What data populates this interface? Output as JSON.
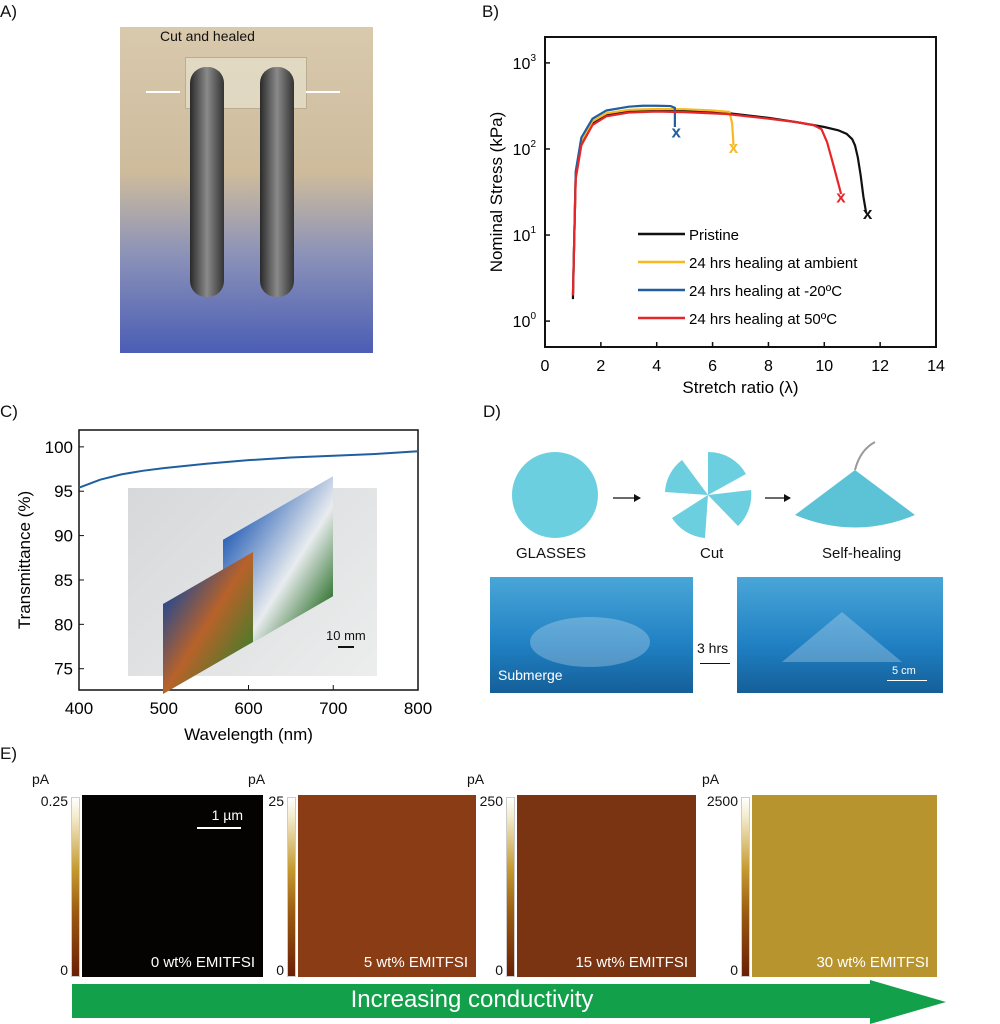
{
  "panels": {
    "a": "A)",
    "b": "B)",
    "c": "C)",
    "d": "D)",
    "e": "E)"
  },
  "panel_a": {
    "annotation": "Cut and healed"
  },
  "panel_d": {
    "step1": "GLASSES",
    "step2": "Cut",
    "step3": "Self-healing",
    "photo1_label": "Submerge",
    "time_label": "3 hrs",
    "scale_label": "5 cm"
  },
  "panel_c_inset": {
    "scale_label": "10 mm"
  },
  "panel_e": {
    "unit": "pA",
    "scale_label": "1 µm",
    "images": [
      {
        "label": "0 wt% EMITFSI",
        "cbar_max": "0.25",
        "cbar_min": "0",
        "color": "#050202"
      },
      {
        "label": "5 wt% EMITFSI",
        "cbar_max": "25",
        "cbar_min": "0",
        "color": "#8a3d14"
      },
      {
        "label": "15 wt% EMITFSI",
        "cbar_max": "250",
        "cbar_min": "0",
        "color": "#7a3412"
      },
      {
        "label": "30 wt% EMITFSI",
        "cbar_max": "2500",
        "cbar_min": "0",
        "color": "#b8942e"
      }
    ],
    "arrow_label": "Increasing conductivity",
    "arrow_color": "#12a14a"
  },
  "chart_data": [
    {
      "type": "line",
      "panel": "B",
      "xlabel": "Stretch ratio (λ)",
      "ylabel": "Nominal Stress (kPa)",
      "xscale": "linear",
      "yscale": "log",
      "xlim": [
        0,
        14
      ],
      "ylim": [
        0.5,
        2000
      ],
      "xticks": [
        "0",
        "2",
        "4",
        "6",
        "8",
        "10",
        "12",
        "14"
      ],
      "yticks": [
        {
          "base": "10",
          "exp": "0"
        },
        {
          "base": "10",
          "exp": "1"
        },
        {
          "base": "10",
          "exp": "2"
        },
        {
          "base": "10",
          "exp": "3"
        }
      ],
      "legend_position": "bottom-center",
      "series": [
        {
          "name": "Pristine",
          "color": "#111111",
          "x": [
            1,
            1.05,
            1.1,
            1.3,
            1.7,
            2.2,
            3,
            4,
            5,
            6.5,
            8,
            9,
            10,
            10.5,
            10.8,
            11,
            11.1,
            11.2,
            11.3,
            11.4,
            11.5
          ],
          "y": [
            1.8,
            10,
            50,
            120,
            200,
            250,
            275,
            280,
            275,
            262,
            230,
            205,
            180,
            165,
            150,
            130,
            110,
            80,
            50,
            28,
            18
          ],
          "break": [
            11.55,
            18
          ]
        },
        {
          "name": "24 hrs healing at ambient",
          "color": "#f8b820",
          "x": [
            1,
            1.05,
            1.1,
            1.3,
            1.7,
            2.2,
            3,
            4,
            5,
            6,
            6.6,
            6.7,
            6.75
          ],
          "y": [
            2,
            10,
            50,
            125,
            210,
            260,
            285,
            292,
            290,
            280,
            270,
            200,
            110
          ],
          "break": [
            6.75,
            105
          ]
        },
        {
          "name": "24 hrs healing at -20ºC",
          "color": "#1f5fa0",
          "x": [
            1,
            1.05,
            1.1,
            1.3,
            1.7,
            2.2,
            3,
            3.5,
            4,
            4.5,
            4.65,
            4.65
          ],
          "y": [
            2,
            10,
            55,
            135,
            225,
            280,
            310,
            318,
            318,
            315,
            300,
            180
          ],
          "break": [
            4.7,
            160
          ]
        },
        {
          "name": "24 hrs healing at 50ºC",
          "color": "#e8262a",
          "x": [
            1,
            1.05,
            1.1,
            1.3,
            1.7,
            2.2,
            3,
            4,
            5,
            6.5,
            8,
            9,
            9.6,
            9.9,
            10.1,
            10.3,
            10.5,
            10.6
          ],
          "y": [
            2,
            10,
            45,
            110,
            190,
            240,
            265,
            272,
            268,
            255,
            225,
            205,
            190,
            170,
            120,
            70,
            40,
            30
          ],
          "break": [
            10.6,
            28
          ]
        }
      ]
    },
    {
      "type": "line",
      "panel": "C",
      "xlabel": "Wavelength (nm)",
      "ylabel": "Transmittance (%)",
      "xlim": [
        400,
        800
      ],
      "ylim": [
        72.6,
        101.9
      ],
      "xticks": [
        "400",
        "500",
        "600",
        "700",
        "800"
      ],
      "yticks": [
        "75",
        "80",
        "85",
        "90",
        "95",
        "100"
      ],
      "series": [
        {
          "color": "#1f5fa0",
          "x": [
            400,
            425,
            450,
            475,
            500,
            550,
            600,
            650,
            700,
            750,
            800
          ],
          "y": [
            95.4,
            96.3,
            96.9,
            97.3,
            97.6,
            98.1,
            98.5,
            98.8,
            99.0,
            99.2,
            99.5
          ]
        }
      ]
    }
  ]
}
